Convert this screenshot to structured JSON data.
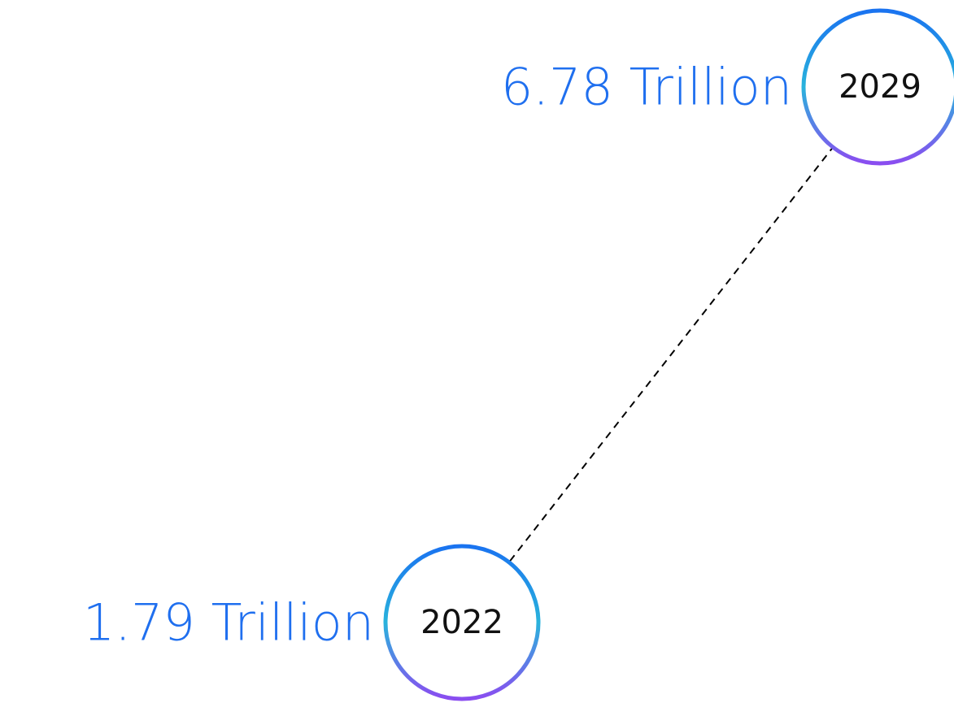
{
  "chart_data": {
    "type": "scatter",
    "title": "",
    "xlabel": "",
    "ylabel": "",
    "grid": false,
    "points": [
      {
        "x": "2022",
        "y": 1.79,
        "year_label": "2022",
        "value_label": "1.79 Trillion"
      },
      {
        "x": "2029",
        "y": 6.78,
        "year_label": "2029",
        "value_label": "6.78 Trillion"
      }
    ],
    "connector": "dashed"
  },
  "colors": {
    "value_text": "#1f6fef",
    "ring_top": "#1a73f0",
    "ring_mid": "#29b3dc",
    "ring_bottom": "#8a4df0",
    "connector": "#000000",
    "circle_fill": "#ffffff"
  }
}
